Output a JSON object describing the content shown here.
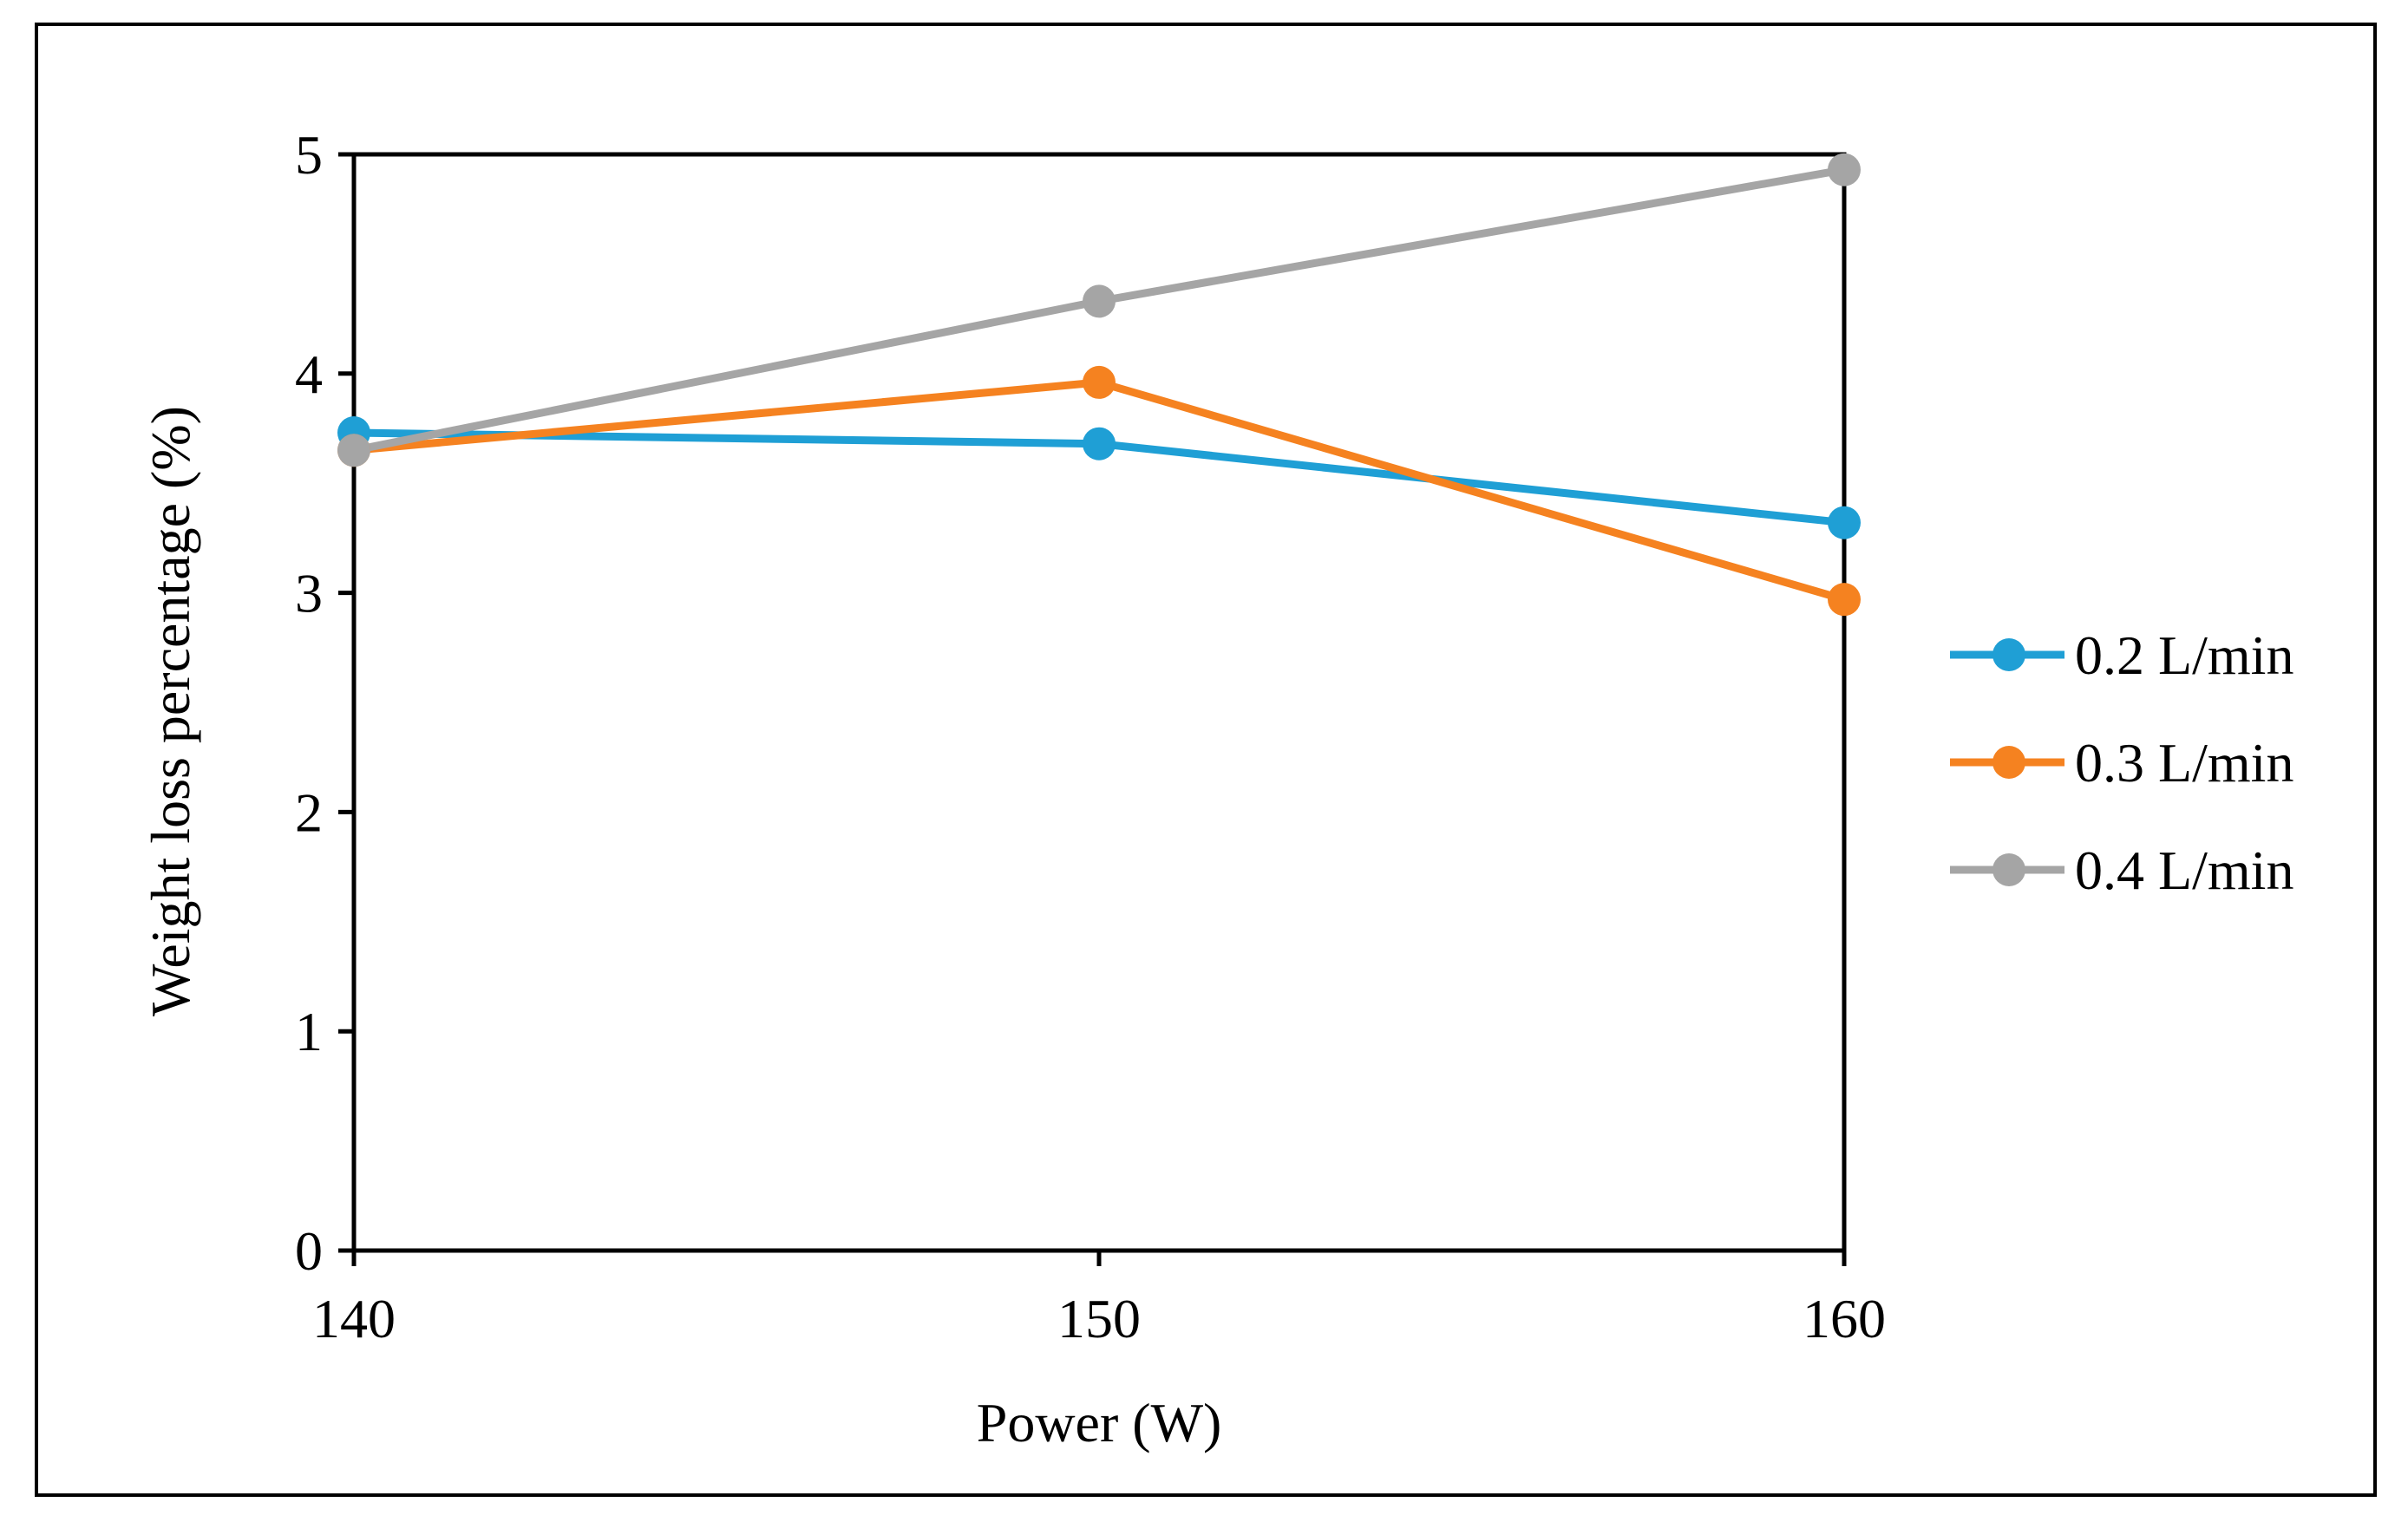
{
  "chart_data": {
    "type": "line",
    "title": "",
    "xlabel": "Power (W)",
    "ylabel": "Weight loss percentage (%)",
    "x": [
      140,
      150,
      160
    ],
    "xticks": [
      140,
      150,
      160
    ],
    "yticks": [
      0,
      1,
      2,
      3,
      4,
      5
    ],
    "xlim": [
      140,
      160
    ],
    "ylim": [
      0,
      5
    ],
    "grid": false,
    "legend_position": "right",
    "series": [
      {
        "name": "0.2 L/min",
        "color": "#1F9FD5",
        "values": [
          3.73,
          3.68,
          3.32
        ]
      },
      {
        "name": "0.3 L/min",
        "color": "#F58220",
        "values": [
          3.65,
          3.96,
          2.97
        ]
      },
      {
        "name": "0.4 L/min",
        "color": "#A5A5A5",
        "values": [
          3.65,
          4.33,
          4.93
        ]
      }
    ]
  }
}
